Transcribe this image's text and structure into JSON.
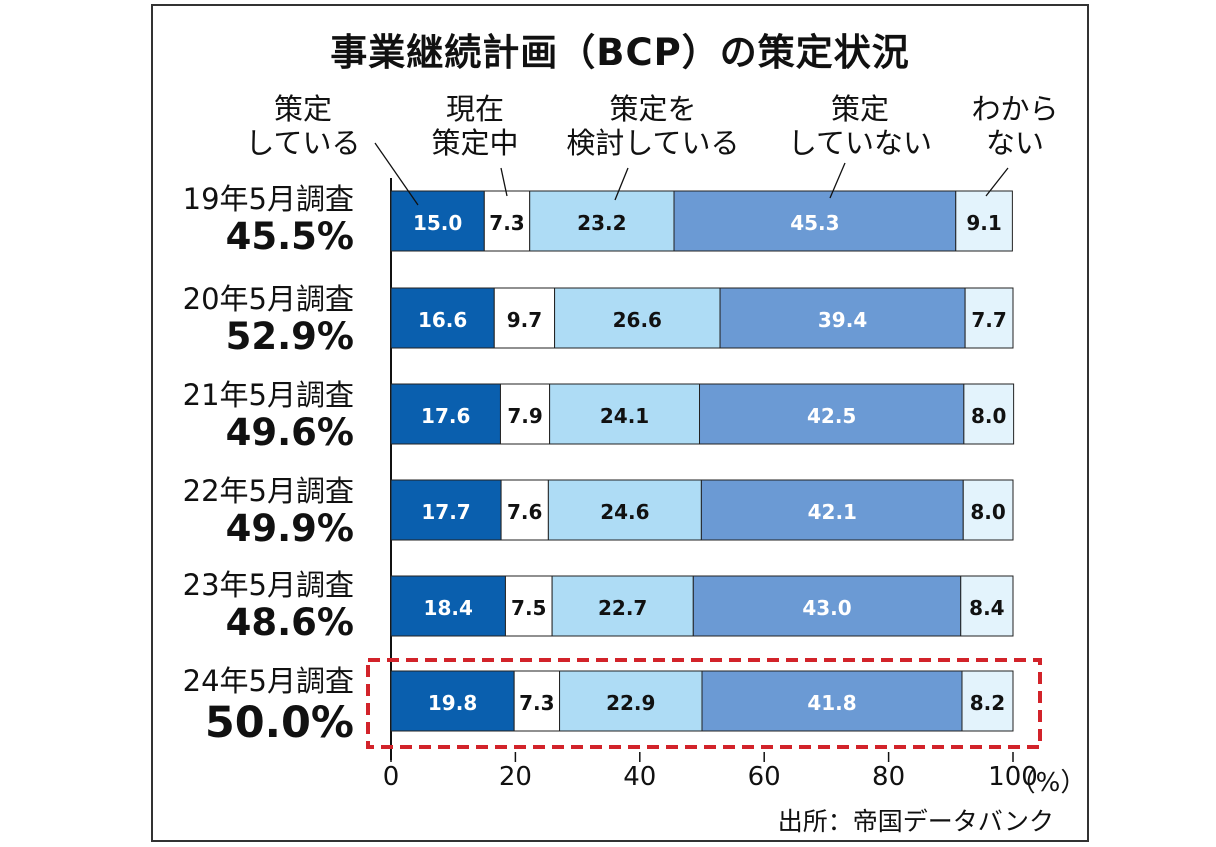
{
  "chart_data": {
    "type": "bar",
    "orientation": "horizontal",
    "stacked": true,
    "title": "事業継続計画（BCP）の策定状況",
    "categories": [
      "19年5月調査",
      "20年5月調査",
      "21年5月調査",
      "22年5月調査",
      "23年5月調査",
      "24年5月調査"
    ],
    "category_totals": [
      "45.5%",
      "52.9%",
      "49.6%",
      "49.9%",
      "48.6%",
      "50.0%"
    ],
    "series": [
      {
        "name": "策定\nしている",
        "color": "#0a5fae",
        "label_color": "#ffffff",
        "values": [
          15.0,
          16.6,
          17.6,
          17.7,
          18.4,
          19.8
        ]
      },
      {
        "name": "現在\n策定中",
        "color": "#ffffff",
        "label_color": "#111111",
        "values": [
          7.3,
          9.7,
          7.9,
          7.6,
          7.5,
          7.3
        ]
      },
      {
        "name": "策定を\n検討している",
        "color": "#aedcf5",
        "label_color": "#111111",
        "values": [
          23.2,
          26.6,
          24.1,
          24.6,
          22.7,
          22.9
        ]
      },
      {
        "name": "策定\nしていない",
        "color": "#6b9ad4",
        "label_color": "#ffffff",
        "values": [
          45.3,
          39.4,
          42.5,
          42.1,
          43.0,
          41.8
        ]
      },
      {
        "name": "わから\nない",
        "color": "#e3f3fc",
        "label_color": "#111111",
        "values": [
          9.1,
          7.7,
          8.0,
          8.0,
          8.4,
          8.2
        ]
      }
    ],
    "x_ticks": [
      "0",
      "20",
      "40",
      "60",
      "80",
      "100"
    ],
    "x_unit": "（%）",
    "xlim": [
      0,
      100
    ],
    "grid": false,
    "legend": "top",
    "highlight_category": "24年5月調査",
    "highlight_color": "#d2232a",
    "source": "出所：帝国データバンク"
  }
}
